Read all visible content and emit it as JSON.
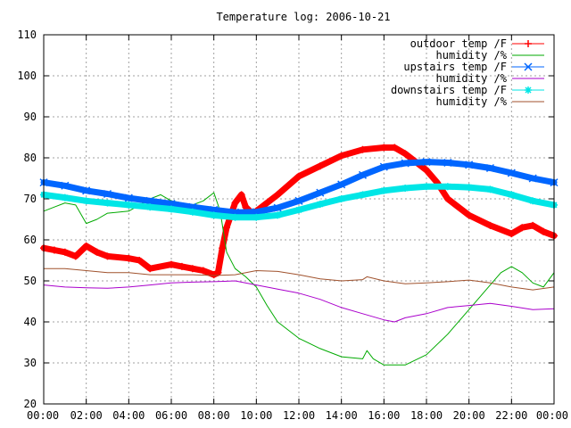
{
  "chart_data": {
    "type": "line",
    "title": "Temperature log: 2006-10-21",
    "xlabel": "",
    "ylabel": "",
    "xlim": [
      0,
      24
    ],
    "ylim": [
      20,
      110
    ],
    "x_ticks": [
      "00:00",
      "02:00",
      "04:00",
      "06:00",
      "08:00",
      "10:00",
      "12:00",
      "14:00",
      "16:00",
      "18:00",
      "20:00",
      "22:00",
      "00:00"
    ],
    "y_ticks": [
      20,
      30,
      40,
      50,
      60,
      70,
      80,
      90,
      100,
      110
    ],
    "grid": true,
    "legend_position": "top-right",
    "series": [
      {
        "name": "outdoor temp /F",
        "color": "#ff0000",
        "marker": "plus",
        "points": [
          [
            0,
            58
          ],
          [
            0.5,
            57.5
          ],
          [
            1,
            57
          ],
          [
            1.5,
            56
          ],
          [
            2,
            58.5
          ],
          [
            2.5,
            57
          ],
          [
            3,
            56
          ],
          [
            4,
            55.5
          ],
          [
            4.5,
            55
          ],
          [
            5,
            53
          ],
          [
            6,
            54
          ],
          [
            6.5,
            53.5
          ],
          [
            7,
            53
          ],
          [
            7.5,
            52.5
          ],
          [
            8,
            51.5
          ],
          [
            8.2,
            52
          ],
          [
            8.4,
            58
          ],
          [
            8.6,
            63
          ],
          [
            8.8,
            66
          ],
          [
            9,
            69
          ],
          [
            9.3,
            71
          ],
          [
            9.5,
            68
          ],
          [
            9.8,
            66.5
          ],
          [
            10,
            67
          ],
          [
            11,
            71
          ],
          [
            12,
            75.5
          ],
          [
            13,
            78
          ],
          [
            14,
            80.5
          ],
          [
            15,
            82
          ],
          [
            16,
            82.5
          ],
          [
            16.5,
            82.5
          ],
          [
            17,
            81
          ],
          [
            18,
            77
          ],
          [
            18.5,
            74
          ],
          [
            19,
            70
          ],
          [
            20,
            66
          ],
          [
            21,
            63.5
          ],
          [
            22,
            61.5
          ],
          [
            22.5,
            63
          ],
          [
            23,
            63.5
          ],
          [
            23.5,
            62
          ],
          [
            24,
            61
          ]
        ]
      },
      {
        "name": "humidity /%",
        "color": "#00aa00",
        "marker": "none",
        "points": [
          [
            0,
            67
          ],
          [
            0.5,
            68
          ],
          [
            1,
            69
          ],
          [
            1.5,
            68.5
          ],
          [
            2,
            64
          ],
          [
            2.5,
            65
          ],
          [
            3,
            66.5
          ],
          [
            4,
            67
          ],
          [
            4.5,
            68.5
          ],
          [
            5,
            70
          ],
          [
            5.5,
            71
          ],
          [
            6,
            69.5
          ],
          [
            7,
            68.5
          ],
          [
            7.5,
            69.5
          ],
          [
            8,
            71.5
          ],
          [
            8.3,
            67
          ],
          [
            8.6,
            57
          ],
          [
            9,
            53
          ],
          [
            9.5,
            51
          ],
          [
            10,
            48.5
          ],
          [
            10.5,
            44
          ],
          [
            11,
            40
          ],
          [
            12,
            36
          ],
          [
            13,
            33.5
          ],
          [
            14,
            31.5
          ],
          [
            15,
            31
          ],
          [
            15.2,
            33
          ],
          [
            15.5,
            31
          ],
          [
            16,
            29.5
          ],
          [
            17,
            29.5
          ],
          [
            18,
            32
          ],
          [
            19,
            37
          ],
          [
            20,
            43
          ],
          [
            21,
            49
          ],
          [
            21.5,
            52
          ],
          [
            22,
            53.5
          ],
          [
            22.5,
            52
          ],
          [
            23,
            49.5
          ],
          [
            23.5,
            48.5
          ],
          [
            24,
            52
          ]
        ]
      },
      {
        "name": "upstairs temp /F",
        "color": "#0066ff",
        "marker": "x",
        "points": [
          [
            0,
            74
          ],
          [
            1,
            73.2
          ],
          [
            2,
            72
          ],
          [
            3,
            71.2
          ],
          [
            4,
            70.2
          ],
          [
            5,
            69.5
          ],
          [
            6,
            68.8
          ],
          [
            7,
            68
          ],
          [
            8,
            67.3
          ],
          [
            9,
            66.7
          ],
          [
            10,
            66.8
          ],
          [
            11,
            67.8
          ],
          [
            12,
            69.5
          ],
          [
            13,
            71.5
          ],
          [
            14,
            73.5
          ],
          [
            15,
            75.8
          ],
          [
            16,
            77.8
          ],
          [
            17,
            78.7
          ],
          [
            18,
            79
          ],
          [
            19,
            78.8
          ],
          [
            20,
            78.3
          ],
          [
            21,
            77.5
          ],
          [
            22,
            76.3
          ],
          [
            23,
            75
          ],
          [
            24,
            74
          ]
        ]
      },
      {
        "name": "humidity /%",
        "color": "#aa00cc",
        "marker": "none",
        "points": [
          [
            0,
            49
          ],
          [
            1,
            48.5
          ],
          [
            2,
            48.3
          ],
          [
            3,
            48.2
          ],
          [
            4,
            48.5
          ],
          [
            5,
            49
          ],
          [
            6,
            49.5
          ],
          [
            7,
            49.7
          ],
          [
            8,
            49.8
          ],
          [
            9,
            50
          ],
          [
            10,
            49
          ],
          [
            11,
            48
          ],
          [
            12,
            47
          ],
          [
            13,
            45.5
          ],
          [
            14,
            43.5
          ],
          [
            15,
            42
          ],
          [
            16,
            40.5
          ],
          [
            16.5,
            40
          ],
          [
            17,
            41
          ],
          [
            18,
            42
          ],
          [
            19,
            43.5
          ],
          [
            20,
            44
          ],
          [
            21,
            44.5
          ],
          [
            22,
            43.8
          ],
          [
            23,
            43
          ],
          [
            24,
            43.2
          ]
        ]
      },
      {
        "name": "downstairs temp /F",
        "color": "#00e6e6",
        "marker": "star",
        "points": [
          [
            0,
            71
          ],
          [
            1,
            70.3
          ],
          [
            2,
            69.5
          ],
          [
            3,
            69
          ],
          [
            4,
            68.5
          ],
          [
            5,
            68
          ],
          [
            6,
            67.5
          ],
          [
            7,
            66.8
          ],
          [
            8,
            66
          ],
          [
            9,
            65.5
          ],
          [
            10,
            65.5
          ],
          [
            11,
            66
          ],
          [
            12,
            67.3
          ],
          [
            13,
            68.7
          ],
          [
            14,
            70
          ],
          [
            15,
            71
          ],
          [
            16,
            72
          ],
          [
            17,
            72.6
          ],
          [
            18,
            73
          ],
          [
            19,
            73
          ],
          [
            20,
            72.8
          ],
          [
            21,
            72.3
          ],
          [
            22,
            71
          ],
          [
            23,
            69.5
          ],
          [
            24,
            68.5
          ]
        ]
      },
      {
        "name": "humidity /%",
        "color": "#a0522d",
        "marker": "none",
        "points": [
          [
            0,
            53
          ],
          [
            1,
            53
          ],
          [
            2,
            52.5
          ],
          [
            3,
            52
          ],
          [
            4,
            52
          ],
          [
            5,
            51.5
          ],
          [
            6,
            51.5
          ],
          [
            7,
            51.5
          ],
          [
            8,
            51.3
          ],
          [
            9,
            51.5
          ],
          [
            10,
            52.5
          ],
          [
            11,
            52.3
          ],
          [
            12,
            51.5
          ],
          [
            13,
            50.5
          ],
          [
            14,
            50
          ],
          [
            15,
            50.3
          ],
          [
            15.2,
            51
          ],
          [
            16,
            50
          ],
          [
            17,
            49.3
          ],
          [
            18,
            49.5
          ],
          [
            19,
            49.8
          ],
          [
            20,
            50.2
          ],
          [
            21,
            49.5
          ],
          [
            22,
            48.5
          ],
          [
            23,
            47.8
          ],
          [
            24,
            48.5
          ]
        ]
      }
    ]
  }
}
